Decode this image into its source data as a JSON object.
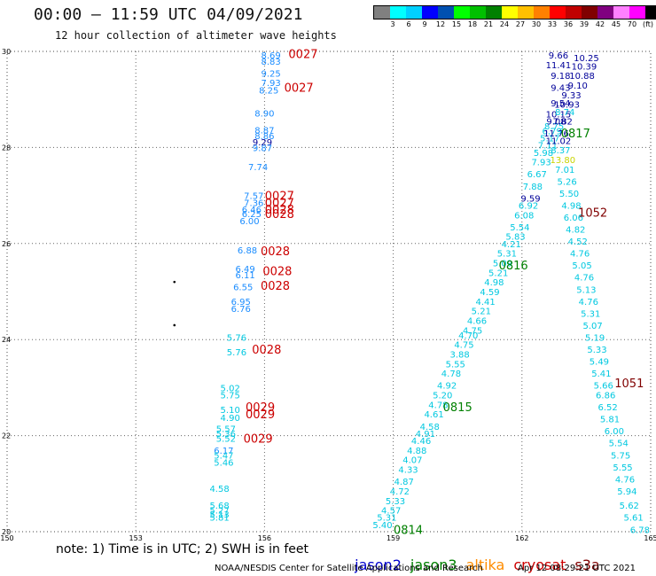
{
  "header": {
    "title": "00:00 — 11:59 UTC 04/09/2021",
    "subtitle": "12 hour collection of altimeter wave heights"
  },
  "legend": {
    "colors": [
      "#808080",
      "#00ffff",
      "#00d0ff",
      "#0000ff",
      "#0050b0",
      "#00ff00",
      "#00c000",
      "#008000",
      "#ffff00",
      "#ffc000",
      "#ff8000",
      "#ff0000",
      "#c00000",
      "#800000",
      "#800080",
      "#ff80ff",
      "#ff00ff",
      "#000000"
    ],
    "labels": [
      "3",
      "6",
      "9",
      "12",
      "15",
      "18",
      "21",
      "24",
      "27",
      "30",
      "33",
      "36",
      "39",
      "42",
      "45",
      "70",
      "(ft)"
    ]
  },
  "map": {
    "x_ticks": [
      "150",
      "153",
      "156",
      "159",
      "162",
      "165"
    ],
    "y_ticks": [
      "30",
      "28",
      "26",
      "24",
      "22",
      "20"
    ],
    "x_range": [
      150,
      165
    ],
    "y_range": [
      20,
      30
    ]
  },
  "satellite_colors": {
    "jason2": "#0000cc",
    "jason3": "#008000",
    "altika": "#ff8c00",
    "cryosat": "#cc0000",
    "s3a": "#800000",
    "low": "#00c8e0",
    "mid": "#1a8cff",
    "hi": "#000099",
    "ylw": "#c8d400"
  },
  "swh_readings": [
    {
      "x": 156.15,
      "y": 29.93,
      "v": "8.69",
      "c": "mid"
    },
    {
      "x": 156.15,
      "y": 29.8,
      "v": "8.83",
      "c": "mid"
    },
    {
      "x": 156.15,
      "y": 29.55,
      "v": "9.25",
      "c": "mid"
    },
    {
      "x": 156.15,
      "y": 29.35,
      "v": "7.93",
      "c": "mid"
    },
    {
      "x": 156.1,
      "y": 29.2,
      "v": "8.25",
      "c": "mid"
    },
    {
      "x": 156.0,
      "y": 28.72,
      "v": "8.90",
      "c": "mid"
    },
    {
      "x": 156.0,
      "y": 28.37,
      "v": "8.87",
      "c": "mid"
    },
    {
      "x": 156.0,
      "y": 28.25,
      "v": "8.86",
      "c": "mid"
    },
    {
      "x": 155.95,
      "y": 28.12,
      "v": "9.29",
      "c": "hi"
    },
    {
      "x": 155.95,
      "y": 28.0,
      "v": "9.87",
      "c": "mid"
    },
    {
      "x": 155.85,
      "y": 27.6,
      "v": "7.74",
      "c": "mid"
    },
    {
      "x": 155.75,
      "y": 27.0,
      "v": "7.57",
      "c": "mid"
    },
    {
      "x": 155.75,
      "y": 26.85,
      "v": "7.36",
      "c": "mid"
    },
    {
      "x": 155.7,
      "y": 26.72,
      "v": "6.46",
      "c": "mid"
    },
    {
      "x": 155.7,
      "y": 26.62,
      "v": "6.25",
      "c": "mid"
    },
    {
      "x": 155.65,
      "y": 26.48,
      "v": "6.00",
      "c": "mid"
    },
    {
      "x": 155.6,
      "y": 25.87,
      "v": "6.88",
      "c": "mid"
    },
    {
      "x": 155.55,
      "y": 25.48,
      "v": "6.49",
      "c": "mid"
    },
    {
      "x": 155.55,
      "y": 25.35,
      "v": "6.11",
      "c": "mid"
    },
    {
      "x": 155.5,
      "y": 25.1,
      "v": "6.55",
      "c": "mid"
    },
    {
      "x": 155.45,
      "y": 24.8,
      "v": "6.95",
      "c": "mid"
    },
    {
      "x": 155.45,
      "y": 24.65,
      "v": "6.76",
      "c": "mid"
    },
    {
      "x": 155.35,
      "y": 24.05,
      "v": "5.76",
      "c": "low"
    },
    {
      "x": 155.35,
      "y": 23.75,
      "v": "5.76",
      "c": "low"
    },
    {
      "x": 155.2,
      "y": 23.0,
      "v": "5.02",
      "c": "low"
    },
    {
      "x": 155.2,
      "y": 22.85,
      "v": "5.75",
      "c": "low"
    },
    {
      "x": 155.2,
      "y": 22.55,
      "v": "5.10",
      "c": "low"
    },
    {
      "x": 155.2,
      "y": 22.38,
      "v": "4.90",
      "c": "low"
    },
    {
      "x": 155.1,
      "y": 22.15,
      "v": "5.57",
      "c": "low"
    },
    {
      "x": 155.1,
      "y": 22.05,
      "v": "5.36",
      "c": "low"
    },
    {
      "x": 155.1,
      "y": 21.95,
      "v": "5.52",
      "c": "low"
    },
    {
      "x": 155.05,
      "y": 21.7,
      "v": "6.17",
      "c": "mid"
    },
    {
      "x": 155.05,
      "y": 21.6,
      "v": "5.47",
      "c": "low"
    },
    {
      "x": 155.05,
      "y": 21.45,
      "v": "5.46",
      "c": "low"
    },
    {
      "x": 154.95,
      "y": 20.9,
      "v": "4.58",
      "c": "low"
    },
    {
      "x": 154.95,
      "y": 20.55,
      "v": "5.68",
      "c": "low"
    },
    {
      "x": 154.95,
      "y": 20.45,
      "v": "5.27",
      "c": "low"
    },
    {
      "x": 154.95,
      "y": 20.37,
      "v": "5.13",
      "c": "low"
    },
    {
      "x": 154.95,
      "y": 20.3,
      "v": "5.81",
      "c": "low"
    },
    {
      "x": 158.75,
      "y": 20.15,
      "v": "5.40",
      "c": "low"
    },
    {
      "x": 158.85,
      "y": 20.3,
      "v": "5.31",
      "c": "low"
    },
    {
      "x": 158.95,
      "y": 20.45,
      "v": "4.57",
      "c": "low"
    },
    {
      "x": 159.05,
      "y": 20.65,
      "v": "5.33",
      "c": "low"
    },
    {
      "x": 159.15,
      "y": 20.85,
      "v": "4.72",
      "c": "low"
    },
    {
      "x": 159.25,
      "y": 21.05,
      "v": "4.87",
      "c": "low"
    },
    {
      "x": 159.35,
      "y": 21.3,
      "v": "4.33",
      "c": "low"
    },
    {
      "x": 159.45,
      "y": 21.5,
      "v": "4.07",
      "c": "low"
    },
    {
      "x": 159.55,
      "y": 21.7,
      "v": "4.88",
      "c": "low"
    },
    {
      "x": 159.65,
      "y": 21.9,
      "v": "4.46",
      "c": "low"
    },
    {
      "x": 159.75,
      "y": 22.05,
      "v": "4.91",
      "c": "low"
    },
    {
      "x": 159.85,
      "y": 22.2,
      "v": "4.58",
      "c": "low"
    },
    {
      "x": 159.95,
      "y": 22.45,
      "v": "4.61",
      "c": "low"
    },
    {
      "x": 160.05,
      "y": 22.65,
      "v": "4.78",
      "c": "low"
    },
    {
      "x": 160.15,
      "y": 22.85,
      "v": "5.20",
      "c": "low"
    },
    {
      "x": 160.25,
      "y": 23.05,
      "v": "4.92",
      "c": "low"
    },
    {
      "x": 160.35,
      "y": 23.3,
      "v": "4.78",
      "c": "low"
    },
    {
      "x": 160.45,
      "y": 23.5,
      "v": "5.55",
      "c": "low"
    },
    {
      "x": 160.55,
      "y": 23.7,
      "v": "3.88",
      "c": "low"
    },
    {
      "x": 160.65,
      "y": 23.9,
      "v": "4.75",
      "c": "low"
    },
    {
      "x": 160.75,
      "y": 24.1,
      "v": "4.70",
      "c": "low"
    },
    {
      "x": 160.85,
      "y": 24.2,
      "v": "4.75",
      "c": "low"
    },
    {
      "x": 160.95,
      "y": 24.4,
      "v": "4.66",
      "c": "low"
    },
    {
      "x": 161.05,
      "y": 24.6,
      "v": "5.21",
      "c": "low"
    },
    {
      "x": 161.15,
      "y": 24.8,
      "v": "4.41",
      "c": "low"
    },
    {
      "x": 161.25,
      "y": 25.0,
      "v": "4.59",
      "c": "low"
    },
    {
      "x": 161.35,
      "y": 25.2,
      "v": "4.98",
      "c": "low"
    },
    {
      "x": 161.45,
      "y": 25.4,
      "v": "5.21",
      "c": "low"
    },
    {
      "x": 161.55,
      "y": 25.6,
      "v": "5.09",
      "c": "low"
    },
    {
      "x": 161.65,
      "y": 25.8,
      "v": "5.31",
      "c": "low"
    },
    {
      "x": 161.75,
      "y": 26.0,
      "v": "4.21",
      "c": "low"
    },
    {
      "x": 161.85,
      "y": 26.15,
      "v": "5.83",
      "c": "low"
    },
    {
      "x": 161.95,
      "y": 26.35,
      "v": "5.54",
      "c": "low"
    },
    {
      "x": 162.05,
      "y": 26.6,
      "v": "6.08",
      "c": "low"
    },
    {
      "x": 162.15,
      "y": 26.8,
      "v": "6.92",
      "c": "low"
    },
    {
      "x": 162.2,
      "y": 26.95,
      "v": "9.59",
      "c": "hi"
    },
    {
      "x": 162.25,
      "y": 27.2,
      "v": "7.88",
      "c": "low"
    },
    {
      "x": 162.35,
      "y": 27.45,
      "v": "6.67",
      "c": "low"
    },
    {
      "x": 162.45,
      "y": 27.7,
      "v": "7.93",
      "c": "low"
    },
    {
      "x": 162.5,
      "y": 27.9,
      "v": "5.98",
      "c": "low"
    },
    {
      "x": 162.6,
      "y": 28.05,
      "v": "7.11",
      "c": "low"
    },
    {
      "x": 162.65,
      "y": 28.2,
      "v": "5.17",
      "c": "low"
    },
    {
      "x": 162.7,
      "y": 28.35,
      "v": "6.79",
      "c": "low"
    },
    {
      "x": 162.75,
      "y": 28.45,
      "v": "8.75",
      "c": "low"
    },
    {
      "x": 162.8,
      "y": 28.55,
      "v": "9.08",
      "c": "hi"
    },
    {
      "x": 162.85,
      "y": 28.7,
      "v": "10.15",
      "c": "hi"
    },
    {
      "x": 162.9,
      "y": 28.93,
      "v": "9.54",
      "c": "hi"
    },
    {
      "x": 162.9,
      "y": 29.25,
      "v": "9.43",
      "c": "hi"
    },
    {
      "x": 162.9,
      "y": 29.5,
      "v": "9.18",
      "c": "hi"
    },
    {
      "x": 162.85,
      "y": 29.72,
      "v": "11.41",
      "c": "hi"
    },
    {
      "x": 162.85,
      "y": 29.93,
      "v": "9.66",
      "c": "hi"
    },
    {
      "x": 164.75,
      "y": 20.05,
      "v": "6.78",
      "c": "low"
    },
    {
      "x": 164.6,
      "y": 20.3,
      "v": "5.61",
      "c": "low"
    },
    {
      "x": 164.5,
      "y": 20.55,
      "v": "5.62",
      "c": "low"
    },
    {
      "x": 164.45,
      "y": 20.85,
      "v": "5.94",
      "c": "low"
    },
    {
      "x": 164.4,
      "y": 21.1,
      "v": "4.76",
      "c": "low"
    },
    {
      "x": 164.35,
      "y": 21.35,
      "v": "5.55",
      "c": "low"
    },
    {
      "x": 164.3,
      "y": 21.6,
      "v": "5.75",
      "c": "low"
    },
    {
      "x": 164.25,
      "y": 21.85,
      "v": "5.54",
      "c": "low"
    },
    {
      "x": 164.15,
      "y": 22.1,
      "v": "6.00",
      "c": "low"
    },
    {
      "x": 164.05,
      "y": 22.35,
      "v": "5.81",
      "c": "low"
    },
    {
      "x": 164.0,
      "y": 22.6,
      "v": "6.52",
      "c": "low"
    },
    {
      "x": 163.95,
      "y": 22.85,
      "v": "6.86",
      "c": "low"
    },
    {
      "x": 163.9,
      "y": 23.05,
      "v": "5.66",
      "c": "low"
    },
    {
      "x": 163.85,
      "y": 23.3,
      "v": "5.41",
      "c": "low"
    },
    {
      "x": 163.8,
      "y": 23.55,
      "v": "5.49",
      "c": "low"
    },
    {
      "x": 163.75,
      "y": 23.8,
      "v": "5.33",
      "c": "low"
    },
    {
      "x": 163.7,
      "y": 24.05,
      "v": "5.19",
      "c": "low"
    },
    {
      "x": 163.65,
      "y": 24.3,
      "v": "5.07",
      "c": "low"
    },
    {
      "x": 163.6,
      "y": 24.55,
      "v": "5.31",
      "c": "low"
    },
    {
      "x": 163.55,
      "y": 24.8,
      "v": "4.76",
      "c": "low"
    },
    {
      "x": 163.5,
      "y": 25.05,
      "v": "5.13",
      "c": "low"
    },
    {
      "x": 163.45,
      "y": 25.3,
      "v": "4.76",
      "c": "low"
    },
    {
      "x": 163.4,
      "y": 25.55,
      "v": "5.05",
      "c": "low"
    },
    {
      "x": 163.35,
      "y": 25.8,
      "v": "4.76",
      "c": "low"
    },
    {
      "x": 163.3,
      "y": 26.05,
      "v": "4.52",
      "c": "low"
    },
    {
      "x": 163.25,
      "y": 26.3,
      "v": "4.82",
      "c": "low"
    },
    {
      "x": 163.2,
      "y": 26.55,
      "v": "6.06",
      "c": "low"
    },
    {
      "x": 163.15,
      "y": 26.8,
      "v": "4.98",
      "c": "low"
    },
    {
      "x": 163.1,
      "y": 27.05,
      "v": "5.50",
      "c": "low"
    },
    {
      "x": 163.05,
      "y": 27.3,
      "v": "5.26",
      "c": "low"
    },
    {
      "x": 163.0,
      "y": 27.55,
      "v": "7.01",
      "c": "low"
    },
    {
      "x": 162.95,
      "y": 27.75,
      "v": "13.80",
      "c": "ylw"
    },
    {
      "x": 162.9,
      "y": 27.95,
      "v": "8.37",
      "c": "low"
    },
    {
      "x": 162.85,
      "y": 28.15,
      "v": "11.02",
      "c": "hi"
    },
    {
      "x": 162.8,
      "y": 28.3,
      "v": "11.76",
      "c": "hi"
    },
    {
      "x": 162.95,
      "y": 28.55,
      "v": "7.82",
      "c": "hi"
    },
    {
      "x": 163.0,
      "y": 28.75,
      "v": "8.74",
      "c": "low"
    },
    {
      "x": 163.05,
      "y": 28.9,
      "v": "10.93",
      "c": "hi"
    },
    {
      "x": 163.15,
      "y": 29.1,
      "v": "9.33",
      "c": "hi"
    },
    {
      "x": 163.3,
      "y": 29.3,
      "v": "9.10",
      "c": "hi"
    },
    {
      "x": 163.4,
      "y": 29.5,
      "v": "10.88",
      "c": "hi"
    },
    {
      "x": 163.45,
      "y": 29.7,
      "v": "10.39",
      "c": "hi"
    },
    {
      "x": 163.5,
      "y": 29.87,
      "v": "10.25",
      "c": "hi"
    }
  ],
  "time_labels": [
    {
      "x": 156.9,
      "y": 29.95,
      "v": "0027",
      "c": "cryosat"
    },
    {
      "x": 156.8,
      "y": 29.25,
      "v": "0027",
      "c": "cryosat"
    },
    {
      "x": 156.35,
      "y": 27.0,
      "v": "0027",
      "c": "cryosat"
    },
    {
      "x": 156.35,
      "y": 26.85,
      "v": "0027",
      "c": "cryosat"
    },
    {
      "x": 156.35,
      "y": 26.72,
      "v": "0028",
      "c": "cryosat"
    },
    {
      "x": 156.35,
      "y": 26.62,
      "v": "0028",
      "c": "cryosat"
    },
    {
      "x": 156.25,
      "y": 25.85,
      "v": "0028",
      "c": "cryosat"
    },
    {
      "x": 156.3,
      "y": 25.43,
      "v": "0028",
      "c": "cryosat"
    },
    {
      "x": 156.25,
      "y": 25.13,
      "v": "0028",
      "c": "cryosat"
    },
    {
      "x": 156.05,
      "y": 23.8,
      "v": "0028",
      "c": "cryosat"
    },
    {
      "x": 155.9,
      "y": 22.6,
      "v": "0029",
      "c": "cryosat"
    },
    {
      "x": 155.9,
      "y": 22.45,
      "v": "0029",
      "c": "cryosat"
    },
    {
      "x": 155.85,
      "y": 21.95,
      "v": "0029",
      "c": "cryosat"
    },
    {
      "x": 159.35,
      "y": 20.05,
      "v": "0814",
      "c": "jason3"
    },
    {
      "x": 160.5,
      "y": 22.6,
      "v": "0815",
      "c": "jason3"
    },
    {
      "x": 161.8,
      "y": 25.55,
      "v": "0816",
      "c": "jason3"
    },
    {
      "x": 163.25,
      "y": 28.3,
      "v": "0817",
      "c": "jason3"
    },
    {
      "x": 163.65,
      "y": 26.65,
      "v": "1052",
      "c": "s3a"
    },
    {
      "x": 164.5,
      "y": 23.1,
      "v": "1051",
      "c": "s3a"
    }
  ],
  "points": [
    {
      "x": 153.9,
      "y": 25.2
    },
    {
      "x": 153.9,
      "y": 24.3
    }
  ],
  "footer": {
    "note": "note: 1) Time is in UTC; 2) SWH is in feet",
    "satellites": [
      "jason2",
      "jason3",
      "altika",
      "cryosat",
      "s3a"
    ],
    "credit": "NOAA/NESDIS Center for Satellite Applications and Research",
    "timestamp": "Apr 12 08:29:21 UTC 2021"
  }
}
